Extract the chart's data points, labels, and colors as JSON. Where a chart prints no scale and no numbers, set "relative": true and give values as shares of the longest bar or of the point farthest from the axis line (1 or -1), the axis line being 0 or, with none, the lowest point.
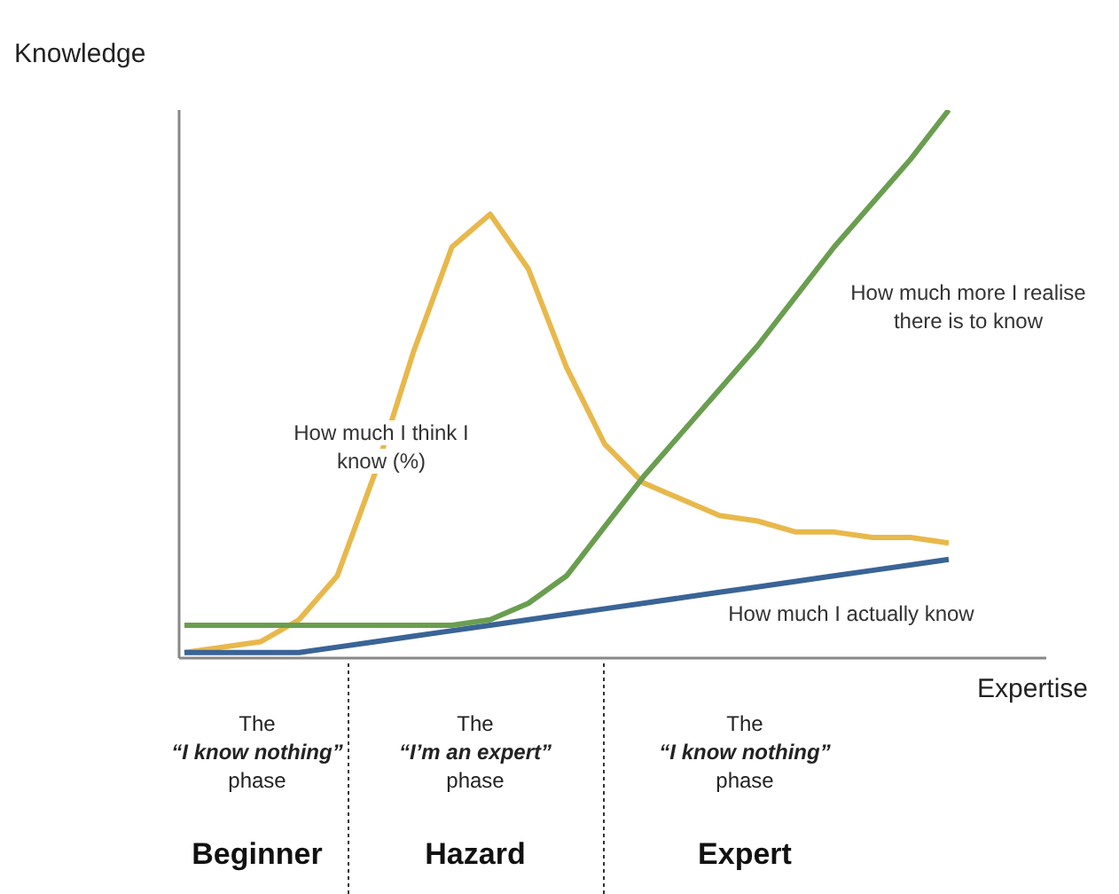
{
  "chart_data": {
    "type": "line",
    "relative": true,
    "xlabel": "Expertise",
    "ylabel": "Knowledge",
    "categories": [
      null,
      null,
      null,
      null,
      null,
      null,
      null,
      null,
      null,
      null,
      null,
      null,
      null,
      null,
      null,
      null,
      null,
      null,
      null,
      null,
      null
    ],
    "series": [
      {
        "name": "How much I think I know (%)",
        "color": "#e8b84b",
        "values": [
          0.01,
          0.02,
          0.03,
          0.07,
          0.15,
          0.34,
          0.56,
          0.75,
          0.81,
          0.71,
          0.53,
          0.39,
          0.32,
          0.29,
          0.26,
          0.25,
          0.23,
          0.23,
          0.22,
          0.22,
          0.21
        ]
      },
      {
        "name": "How much more I realise there is to know",
        "color": "#6a9e4f",
        "values": [
          0.06,
          0.06,
          0.06,
          0.06,
          0.06,
          0.06,
          0.06,
          0.06,
          0.07,
          0.1,
          0.15,
          0.24,
          0.33,
          0.41,
          0.49,
          0.57,
          0.66,
          0.75,
          0.83,
          0.91,
          1
        ]
      },
      {
        "name": "How much I actually know",
        "color": "#3a6496",
        "values": [
          0.01,
          0.01,
          0.01,
          0.01,
          0.02,
          0.03,
          0.04,
          0.05,
          0.06,
          0.07,
          0.08,
          0.09,
          0.1,
          0.11,
          0.12,
          0.13,
          0.14,
          0.15,
          0.16,
          0.17,
          0.18
        ]
      }
    ],
    "annotations": [
      "The “I know nothing” phase",
      "The “I’m an expert” phase",
      "The “I know nothing” phase",
      "Beginner",
      "Hazard",
      "Expert"
    ]
  }
}
